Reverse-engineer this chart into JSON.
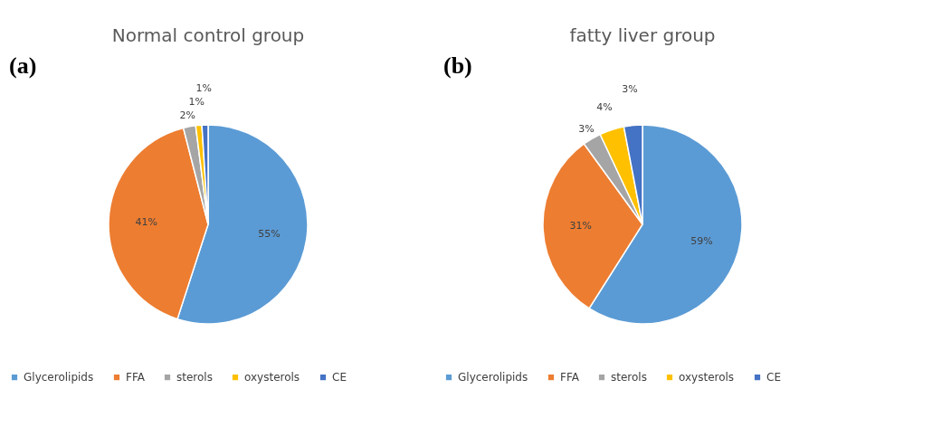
{
  "chart_data": [
    {
      "type": "pie",
      "title": "Normal control group",
      "annotations": [
        "(a)"
      ],
      "categories": [
        "Glycerolipids",
        "FFA",
        "sterols",
        "oxysterols",
        "CE"
      ],
      "values": [
        55,
        41,
        2,
        1,
        1
      ],
      "colors": [
        "#5b9bd5",
        "#ed7d31",
        "#a5a5a5",
        "#ffc000",
        "#4472c4"
      ],
      "value_labels": [
        "55%",
        "41%",
        "2%",
        "1%",
        "1%"
      ],
      "legend": "bottom"
    },
    {
      "type": "pie",
      "title": "fatty liver group",
      "annotations": [
        "(b)"
      ],
      "categories": [
        "Glycerolipids",
        "FFA",
        "sterols",
        "oxysterols",
        "CE"
      ],
      "values": [
        59,
        31,
        3,
        4,
        3
      ],
      "colors": [
        "#5b9bd5",
        "#ed7d31",
        "#a5a5a5",
        "#ffc000",
        "#4472c4"
      ],
      "value_labels": [
        "59%",
        "31%",
        "3%",
        "4%",
        "3%"
      ],
      "legend": "bottom"
    }
  ]
}
